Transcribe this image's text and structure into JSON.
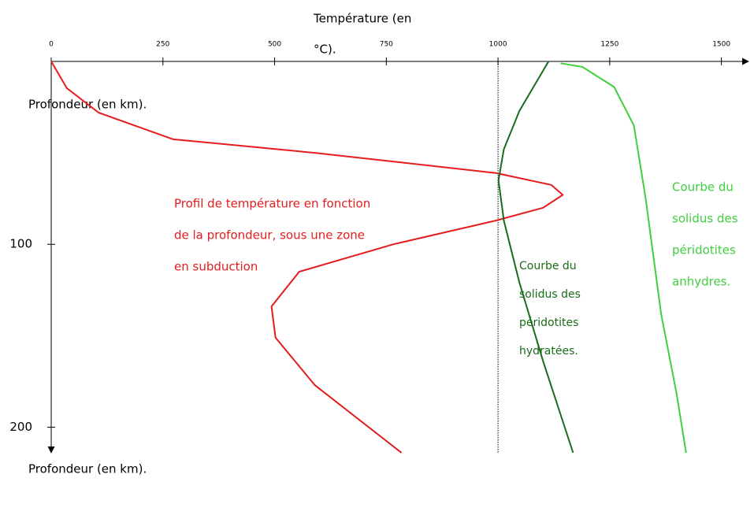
{
  "chart_data": {
    "type": "line",
    "xlabel_lines": [
      "Température (en",
      "°C)."
    ],
    "y_labels": [
      "Profondeur (en km).",
      "Profondeur (en km)."
    ],
    "xlim": [
      0,
      1550
    ],
    "xticks": [
      0,
      250,
      500,
      750,
      1000,
      1250,
      1500
    ],
    "ylim": [
      0,
      214
    ],
    "yticks": [
      100,
      200
    ],
    "y_inverted": true,
    "vline": 1000,
    "series": [
      {
        "color": "#e41c1c",
        "x": [
          0,
          35,
          106,
          273,
          590,
          995,
          1119,
          1145,
          1101,
          995,
          766,
          555,
          493,
          502,
          590,
          784
        ],
        "values": [
          0,
          14.6,
          28,
          42.6,
          50,
          61,
          67.5,
          73,
          80,
          87,
          100,
          115,
          134,
          151,
          177,
          214
        ]
      },
      {
        "color": "#1a6b1a",
        "x": [
          1113,
          1048,
          1013,
          1001,
          1013,
          1048,
          1101,
          1168
        ],
        "values": [
          0,
          27,
          48,
          65,
          87,
          121,
          164,
          214
        ]
      },
      {
        "color": "#3fcf3f",
        "x": [
          1140,
          1189,
          1260,
          1304,
          1330,
          1365,
          1400,
          1421
        ],
        "values": [
          1,
          3,
          14,
          35,
          74,
          138,
          182,
          214
        ]
      }
    ],
    "annotations": [
      [
        "Profil de température en fonction",
        "de la profondeur, sous une zone",
        "en subduction"
      ],
      [
        "Courbe du",
        "solidus des",
        "péridotites",
        "hydratées."
      ],
      [
        "Courbe du",
        "solidus des",
        "péridotites",
        "anhydres."
      ]
    ]
  }
}
